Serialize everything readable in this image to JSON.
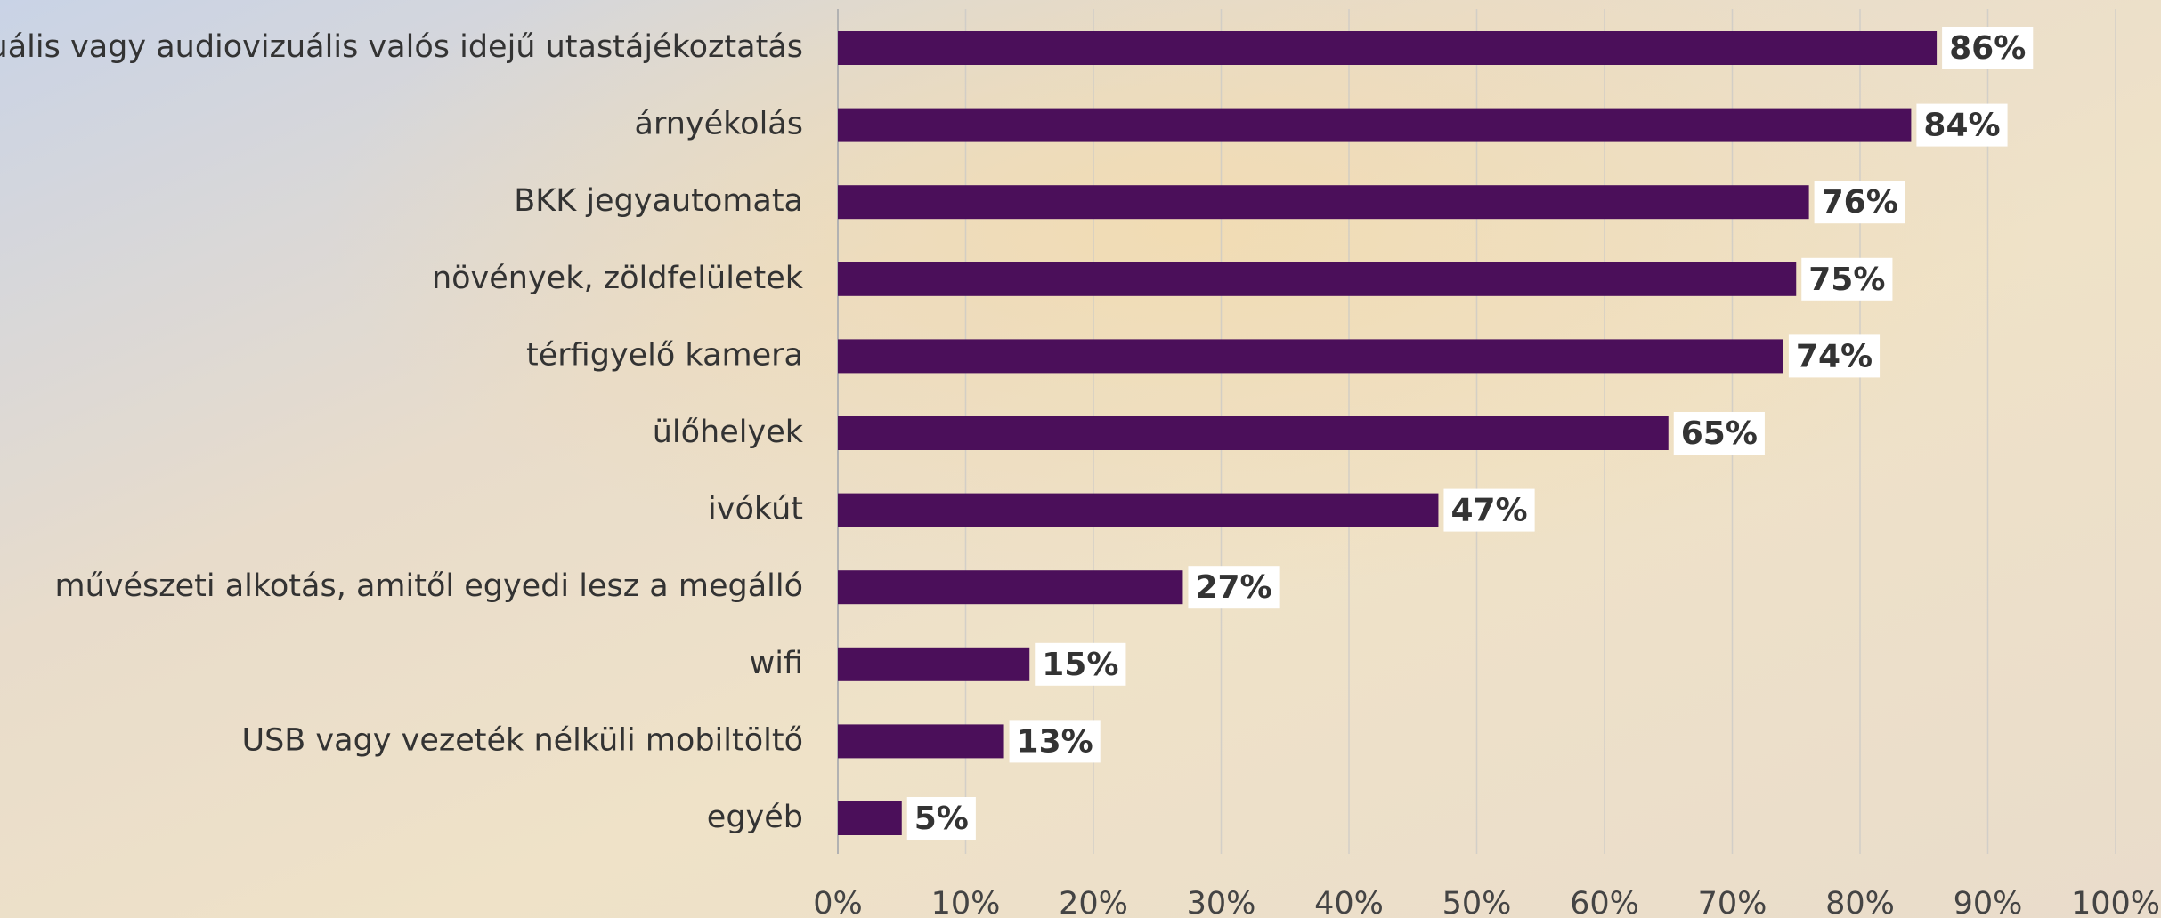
{
  "chart_data": {
    "type": "bar",
    "orientation": "horizontal",
    "categories": [
      "vizuális vagy audiovizuális valós idejű utastájékoztatás",
      "árnyékolás",
      "BKK jegyautomata",
      "növények, zöldfelületek",
      "térfigyelő kamera",
      "ülőhelyek",
      "ivókút",
      "művészeti alkotás, amitől egyedi lesz a megálló",
      "wifi",
      "USB vagy vezeték nélküli mobiltöltő",
      "egyéb"
    ],
    "values": [
      86,
      84,
      76,
      75,
      74,
      65,
      47,
      27,
      15,
      13,
      5
    ],
    "value_labels": [
      "86%",
      "84%",
      "76%",
      "75%",
      "74%",
      "65%",
      "47%",
      "27%",
      "15%",
      "13%",
      "5%"
    ],
    "color": "#4b0f5a",
    "xlim": [
      0,
      100
    ],
    "xticks": [
      {
        "value": 0,
        "label": "0%"
      },
      {
        "value": 10,
        "label": "10%"
      },
      {
        "value": 20,
        "label": "20%"
      },
      {
        "value": 30,
        "label": "30%"
      },
      {
        "value": 40,
        "label": "40%"
      },
      {
        "value": 50,
        "label": "50%"
      },
      {
        "value": 60,
        "label": "60%"
      },
      {
        "value": 70,
        "label": "70%"
      },
      {
        "value": 80,
        "label": "80%"
      },
      {
        "value": 90,
        "label": "90%"
      },
      {
        "value": 100,
        "label": "100%"
      }
    ],
    "grid": true
  }
}
